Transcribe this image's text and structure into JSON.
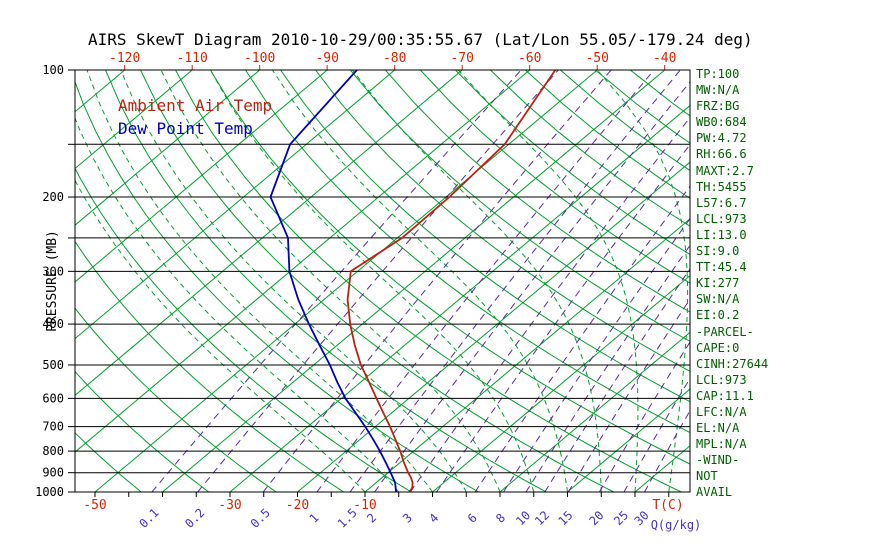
{
  "title": "AIRS SkewT Diagram 2010-10-29/00:35:55.67 (Lat/Lon 55.05/-179.24 deg)",
  "legend": {
    "temp": "Ambient Air Temp",
    "dewpoint": "Dew Point Temp"
  },
  "axes": {
    "pressure_label": "PRESSURE (MB)",
    "pressure_ticks": [
      100,
      200,
      300,
      400,
      500,
      600,
      700,
      800,
      900,
      1000
    ],
    "minor_pressure_lines": [
      150,
      250
    ],
    "top_temp_ticks": [
      -120,
      -110,
      -100,
      -90,
      -80,
      -70,
      -60,
      -50,
      -40
    ],
    "bottom_temp_ticks": [
      -50,
      -30,
      -20,
      -10
    ],
    "temp_unit_label": "T(C)",
    "mixing_ratio_ticks": [
      0.1,
      0.2,
      0.5,
      1,
      1.5,
      2,
      3,
      4,
      6,
      8,
      10,
      12,
      15,
      20,
      25,
      30
    ],
    "mixing_unit_label": "Q(g/kg)"
  },
  "stats_panel": [
    "TP:100",
    "MW:N/A",
    "FRZ:BG",
    "WB0:684",
    "PW:4.72",
    "RH:66.6",
    "MAXT:2.7",
    "TH:5455",
    "L57:6.7",
    "LCL:973",
    "LI:13.0",
    "SI:9.0",
    "TT:45.4",
    "KI:277",
    "SW:N/A",
    "EI:0.2",
    "-PARCEL-",
    "CAPE:0",
    "CINH:27644",
    "LCL:973",
    "CAP:11.1",
    "LFC:N/A",
    "EL:N/A",
    "MPL:N/A",
    "-WIND-",
    "NOT",
    "AVAIL"
  ],
  "colors": {
    "background": "#ffffff",
    "axis_black": "#000000",
    "line_green": "#00a02c",
    "mixing_purple": "#5a2a9a",
    "temp_red": "#bb2211",
    "dewpoint_blue": "#0000bb",
    "label_red": "#dd2200",
    "mixing_label_blue": "#4433cc",
    "stats_green": "#006000"
  },
  "chart_data": {
    "type": "line",
    "title": "AIRS SkewT Diagram 2010-10-29/00:35:55.67 (Lat/Lon 55.05/-179.24 deg)",
    "xlabel": "T(C)",
    "ylabel": "PRESSURE (MB)",
    "y_scale": "log",
    "ylim": [
      100,
      1000
    ],
    "x_range_at_surface": [
      -55,
      45
    ],
    "skewed_isotherms": true,
    "grid": {
      "isotherm_step_c": 10,
      "dry_adiabats": true,
      "moist_adiabats_dashed": true,
      "mixing_ratio_lines_dashed": [
        0.1,
        0.2,
        0.5,
        1,
        1.5,
        2,
        3,
        4,
        6,
        8,
        10,
        12,
        15,
        20,
        25,
        30
      ]
    },
    "legend_position": "top-left-inside",
    "series": [
      {
        "name": "Ambient Air Temp",
        "key": "ambient-temp-line",
        "color_ref": "temp_red",
        "points": [
          {
            "p": 1000,
            "t": -3.4
          },
          {
            "p": 975,
            "t": -3.8
          },
          {
            "p": 950,
            "t": -4.6
          },
          {
            "p": 925,
            "t": -5.7
          },
          {
            "p": 900,
            "t": -7.0
          },
          {
            "p": 850,
            "t": -9.5
          },
          {
            "p": 800,
            "t": -12.0
          },
          {
            "p": 750,
            "t": -14.8
          },
          {
            "p": 700,
            "t": -17.8
          },
          {
            "p": 650,
            "t": -21.2
          },
          {
            "p": 600,
            "t": -24.8
          },
          {
            "p": 550,
            "t": -28.7
          },
          {
            "p": 500,
            "t": -33.0
          },
          {
            "p": 450,
            "t": -37.3
          },
          {
            "p": 400,
            "t": -41.8
          },
          {
            "p": 350,
            "t": -46.5
          },
          {
            "p": 300,
            "t": -51.0
          },
          {
            "p": 250,
            "t": -49.3
          },
          {
            "p": 200,
            "t": -49.5
          },
          {
            "p": 150,
            "t": -50.6
          },
          {
            "p": 100,
            "t": -56.2
          }
        ]
      },
      {
        "name": "Dew Point Temp",
        "key": "dew-point-line",
        "color_ref": "dewpoint_blue",
        "points": [
          {
            "p": 1000,
            "t": -5.4
          },
          {
            "p": 950,
            "t": -7.2
          },
          {
            "p": 900,
            "t": -9.6
          },
          {
            "p": 850,
            "t": -12.2
          },
          {
            "p": 800,
            "t": -15.0
          },
          {
            "p": 750,
            "t": -18.1
          },
          {
            "p": 700,
            "t": -21.5
          },
          {
            "p": 650,
            "t": -25.3
          },
          {
            "p": 600,
            "t": -29.4
          },
          {
            "p": 550,
            "t": -33.4
          },
          {
            "p": 500,
            "t": -37.6
          },
          {
            "p": 450,
            "t": -42.5
          },
          {
            "p": 400,
            "t": -47.9
          },
          {
            "p": 350,
            "t": -53.8
          },
          {
            "p": 300,
            "t": -60.1
          },
          {
            "p": 250,
            "t": -66.2
          },
          {
            "p": 200,
            "t": -76.0
          },
          {
            "p": 150,
            "t": -82.4
          },
          {
            "p": 100,
            "t": -85.6
          }
        ]
      }
    ]
  }
}
